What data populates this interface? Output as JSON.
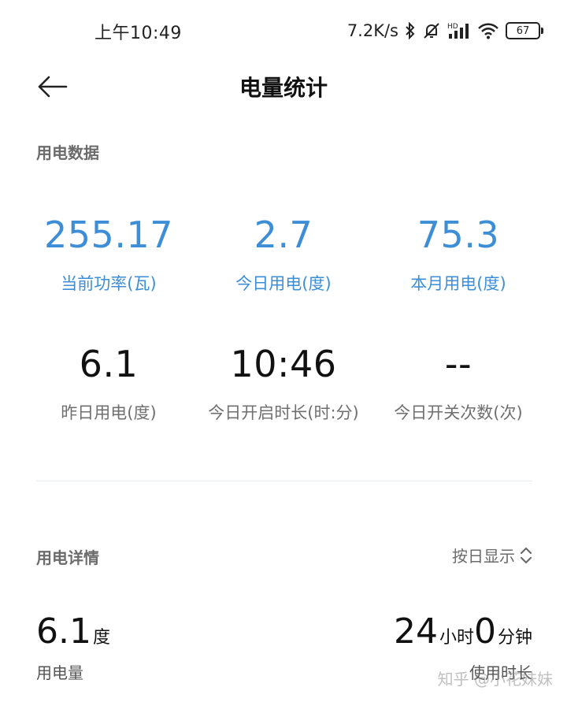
{
  "status_bar": {
    "time": "上午10:49",
    "net_speed": "7.2K/s",
    "icons": [
      "bluetooth-icon",
      "mute-icon",
      "hd-signal-icon",
      "wifi-icon",
      "battery-icon"
    ],
    "battery_level": "67"
  },
  "header": {
    "title": "电量统计",
    "back_icon": "back-arrow-icon"
  },
  "usage_data": {
    "section_title": "用电数据",
    "stats": [
      {
        "value": "255.17",
        "label": "当前功率(瓦)"
      },
      {
        "value": "2.7",
        "label": "今日用电(度)"
      },
      {
        "value": "75.3",
        "label": "本月用电(度)"
      },
      {
        "value": "6.1",
        "label": "昨日用电(度)"
      },
      {
        "value": "10:46",
        "label": "今日开启时长(时:分)"
      },
      {
        "value": "--",
        "label": "今日开关次数(次)"
      }
    ]
  },
  "usage_details": {
    "section_title": "用电详情",
    "display_mode": "按日显示",
    "consumption": {
      "value": "6.1",
      "unit": "度",
      "label": "用电量"
    },
    "duration": {
      "hours": "24",
      "hours_unit": "小时",
      "minutes": "0",
      "minutes_unit": "分钟",
      "label": "使用时长"
    }
  },
  "colors": {
    "accent": "#3d8ed6",
    "text": "#111111",
    "muted": "#6f6f6f"
  },
  "watermark": "知乎 @小花妹妹"
}
